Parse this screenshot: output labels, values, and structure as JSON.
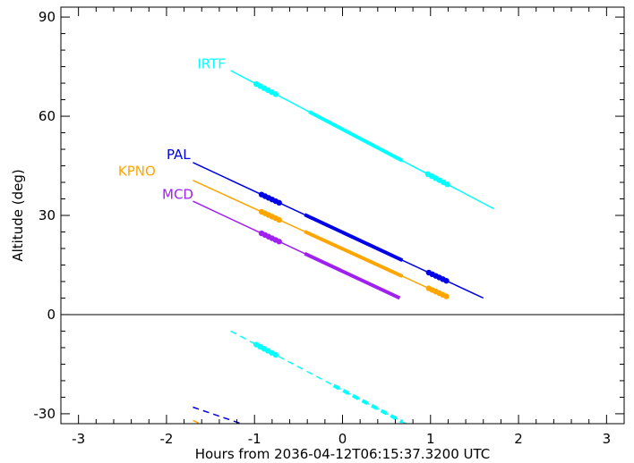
{
  "chart_data": {
    "type": "line",
    "title": "",
    "xlabel": "Hours from 2036-04-12T06:15:37.3200 UTC",
    "ylabel": "Altitude (deg)",
    "xlim": [
      -3.2,
      3.2
    ],
    "ylim": [
      -33,
      93
    ],
    "xticks": [
      -3,
      -2,
      -1,
      0,
      1,
      2,
      3
    ],
    "yticks": [
      -30,
      0,
      30,
      60,
      90
    ],
    "grid": false,
    "reference_line": 0,
    "series": [
      {
        "name": "IRTF",
        "color": "#00FFFF",
        "label_at": [
          -1.65,
          74.5
        ],
        "line": {
          "x": [
            -1.27,
            1.72
          ],
          "y": [
            73.8,
            32
          ]
        },
        "thick": [
          [
            -0.38,
            0.68
          ]
        ],
        "dots": [
          [
            -0.98,
            -0.76
          ],
          [
            0.97,
            1.19
          ]
        ],
        "below_horizon": {
          "x": [
            -1.27,
            0.72
          ],
          "y": [
            -5,
            -33
          ]
        },
        "below_thick": [
          [
            -0.1,
            0.68
          ]
        ],
        "below_dots": [
          [
            -0.98,
            -0.76
          ]
        ]
      },
      {
        "name": "PAL",
        "color": "#0000E6",
        "label_at": [
          -2.0,
          47
        ],
        "line": {
          "x": [
            -1.7,
            1.6
          ],
          "y": [
            46,
            5
          ]
        },
        "thick": [
          [
            -0.43,
            0.68
          ]
        ],
        "dots": [
          [
            -0.92,
            -0.72
          ],
          [
            0.98,
            1.18
          ]
        ],
        "below_horizon": {
          "x": [
            -1.7,
            -1.15
          ],
          "y": [
            -28,
            -33
          ]
        }
      },
      {
        "name": "KPNO",
        "color": "#FFA500",
        "label_at": [
          -2.55,
          42
        ],
        "line": {
          "x": [
            -1.7,
            1.18
          ],
          "y": [
            40.6,
            5.5
          ]
        },
        "thick": [
          [
            -0.43,
            0.68
          ]
        ],
        "dots": [
          [
            -0.92,
            -0.72
          ],
          [
            0.98,
            1.18
          ]
        ],
        "below_horizon": {
          "x": [
            -1.7,
            -1.62
          ],
          "y": [
            -32,
            -33
          ]
        }
      },
      {
        "name": "MCD",
        "color": "#A020F0",
        "label_at": [
          -2.05,
          35
        ],
        "line": {
          "x": [
            -1.7,
            0.65
          ],
          "y": [
            34.3,
            5
          ]
        },
        "thick": [
          [
            -0.43,
            0.65
          ]
        ],
        "dots": [
          [
            -0.92,
            -0.72
          ]
        ]
      }
    ]
  }
}
